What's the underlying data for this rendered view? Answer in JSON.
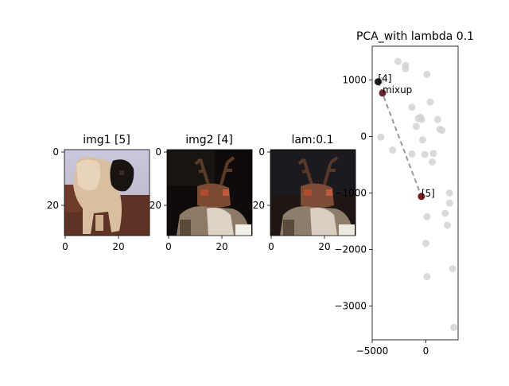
{
  "figure": {
    "panels": [
      {
        "title": "img1 [5]",
        "ytick_labels": [
          "0",
          "20"
        ],
        "xtick_labels": [
          "0",
          "20"
        ],
        "image": "small pixelated photo of a fluffy light-tan dog with a dark face on a brown floor against a light background"
      },
      {
        "title": "img2 [4]",
        "ytick_labels": [
          "0",
          "20"
        ],
        "xtick_labels": [
          "0",
          "20"
        ],
        "image": "small pixelated photo of a deer with antlers against a dark background"
      },
      {
        "title": "lam:0.1",
        "ytick_labels": [
          "0",
          "20"
        ],
        "xtick_labels": [
          "0",
          "20"
        ],
        "image": "mixup blend: mostly the deer image with a faint trace of the dog"
      }
    ]
  },
  "chart_data": {
    "type": "scatter",
    "title": "PCA_with lambda 0.1",
    "xlabel": "",
    "ylabel": "",
    "xlim": [
      -5000,
      3000
    ],
    "ylim": [
      -3600,
      1600
    ],
    "xticks": [
      -5000,
      0
    ],
    "xtick_labels": [
      "−5000",
      "0"
    ],
    "yticks": [
      1000,
      0,
      -1000,
      -2000,
      -3000
    ],
    "ytick_labels": [
      "1000",
      "0",
      "−1000",
      "−2000",
      "−3000"
    ],
    "grid": false,
    "colors": {
      "background": "#d3d3d3",
      "img2": "#1c1c1c",
      "mixup": "#6b2231",
      "img1": "#7a1f1f",
      "path": "#999999"
    },
    "series": [
      {
        "role": "background",
        "points": [
          [
            -2600,
            1330
          ],
          [
            -1900,
            1260
          ],
          [
            -1900,
            1200
          ],
          [
            100,
            1100
          ],
          [
            -4200,
            990
          ],
          [
            400,
            610
          ],
          [
            -1300,
            520
          ],
          [
            -500,
            340
          ],
          [
            -700,
            320
          ],
          [
            -400,
            300
          ],
          [
            1100,
            300
          ],
          [
            -900,
            180
          ],
          [
            1300,
            130
          ],
          [
            1500,
            110
          ],
          [
            -4200,
            -10
          ],
          [
            -300,
            -60
          ],
          [
            -3100,
            -240
          ],
          [
            -1300,
            -310
          ],
          [
            -100,
            -320
          ],
          [
            700,
            -300
          ],
          [
            600,
            -450
          ],
          [
            2200,
            -1000
          ],
          [
            2200,
            -1180
          ],
          [
            100,
            -1420
          ],
          [
            1800,
            -1360
          ],
          [
            2000,
            -1570
          ],
          [
            0,
            -1890
          ],
          [
            100,
            -2480
          ],
          [
            2500,
            -2340
          ],
          [
            2600,
            -3380
          ]
        ]
      },
      {
        "role": "img2",
        "label": "[4]",
        "points": [
          [
            -4450,
            970
          ]
        ]
      },
      {
        "role": "mixup",
        "label": "mixup",
        "points": [
          [
            -4040,
            770
          ]
        ]
      },
      {
        "role": "img1",
        "label": "[5]",
        "points": [
          [
            -420,
            -1060
          ]
        ]
      }
    ]
  }
}
